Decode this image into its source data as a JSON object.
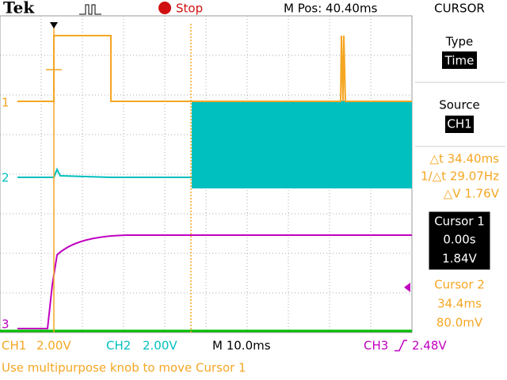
{
  "header": {
    "brand": "Tek",
    "state": "Stop",
    "position": "M Pos: 40.40ms",
    "menu": "CURSOR"
  },
  "side_menu": {
    "type_label": "Type",
    "type_value": "Time",
    "source_label": "Source",
    "source_value": "CH1",
    "readouts": [
      "△t 34.40ms",
      "1/△t 29.07Hz",
      "△V 1.76V"
    ]
  },
  "cursor1": {
    "title": "Cursor 1",
    "time": "0.00s",
    "volts": "1.84V"
  },
  "cursor2": {
    "title": "Cursor 2",
    "time": "34.4ms",
    "volts": "80.0mV"
  },
  "markers": [
    "1",
    "2",
    "3"
  ],
  "status_bar": {
    "ch1": "CH1",
    "ch1_scale": "2.00V",
    "ch2": "CH2",
    "ch2_scale": "2.00V",
    "timebase": "M 10.0ms",
    "ch3": "CH3",
    "trigger_level": "2.48V"
  },
  "message": "Use multipurpose knob to move Cursor 1"
}
